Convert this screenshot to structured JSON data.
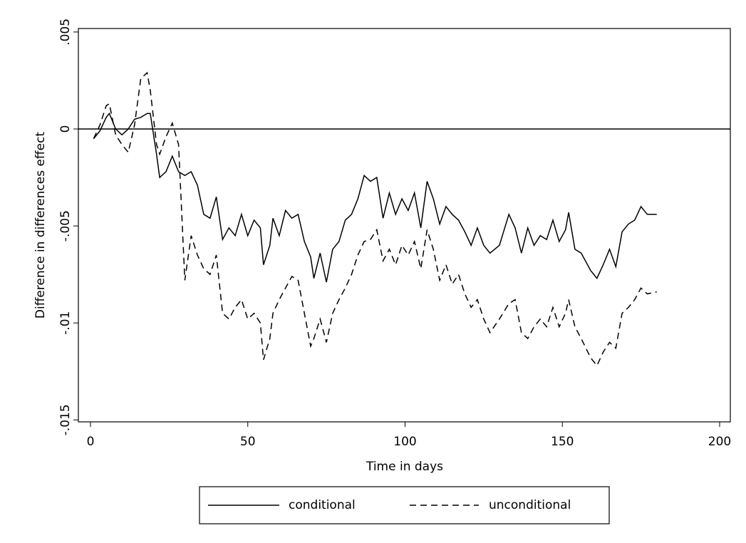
{
  "chart_data": {
    "type": "line",
    "xlabel": "Time in days",
    "ylabel": "Difference in differences effect",
    "x": [
      1,
      3,
      5,
      6,
      8,
      10,
      12,
      14,
      16,
      18,
      19,
      21,
      22,
      24,
      26,
      28,
      30,
      32,
      34,
      36,
      38,
      40,
      42,
      44,
      46,
      48,
      50,
      52,
      54,
      55,
      57,
      58,
      60,
      62,
      64,
      66,
      68,
      70,
      71,
      73,
      75,
      77,
      79,
      81,
      83,
      85,
      87,
      89,
      91,
      93,
      95,
      97,
      99,
      101,
      103,
      105,
      107,
      109,
      111,
      113,
      115,
      117,
      119,
      121,
      123,
      125,
      127,
      130,
      133,
      135,
      137,
      139,
      141,
      143,
      145,
      147,
      149,
      151,
      152,
      154,
      156,
      159,
      161,
      163,
      165,
      167,
      169,
      171,
      173,
      175,
      177,
      180
    ],
    "series": [
      {
        "name": "conditional",
        "color": "#000000",
        "style": "solid",
        "values": [
          -0.0005,
          -0.0001,
          0.0006,
          0.0008,
          0,
          -0.0003,
          0,
          0.0005,
          0.0006,
          0.0008,
          0.0008,
          -0.0013,
          -0.0025,
          -0.0022,
          -0.0014,
          -0.0022,
          -0.0024,
          -0.0022,
          -0.0029,
          -0.0044,
          -0.0046,
          -0.0035,
          -0.0057,
          -0.0051,
          -0.0055,
          -0.0044,
          -0.0055,
          -0.0047,
          -0.0051,
          -0.007,
          -0.006,
          -0.0046,
          -0.0055,
          -0.0042,
          -0.0046,
          -0.0044,
          -0.0058,
          -0.0066,
          -0.0077,
          -0.0064,
          -0.0079,
          -0.0062,
          -0.0058,
          -0.0047,
          -0.0044,
          -0.0036,
          -0.0024,
          -0.0027,
          -0.0025,
          -0.0046,
          -0.0033,
          -0.0044,
          -0.0036,
          -0.0042,
          -0.0033,
          -0.0051,
          -0.0027,
          -0.0036,
          -0.0049,
          -0.004,
          -0.0044,
          -0.0047,
          -0.0053,
          -0.006,
          -0.0051,
          -0.006,
          -0.0064,
          -0.006,
          -0.0044,
          -0.0051,
          -0.0064,
          -0.0051,
          -0.006,
          -0.0055,
          -0.0057,
          -0.0047,
          -0.0058,
          -0.0052,
          -0.0043,
          -0.0062,
          -0.0064,
          -0.0073,
          -0.0077,
          -0.007,
          -0.0062,
          -0.0071,
          -0.0053,
          -0.0049,
          -0.0047,
          -0.004,
          -0.0044,
          -0.0044
        ]
      },
      {
        "name": "unconditional",
        "color": "#000000",
        "style": "dashed",
        "values": [
          -0.0005,
          0.0002,
          0.0012,
          0.0013,
          -0.0003,
          -0.0008,
          -0.0012,
          0.0002,
          0.0026,
          0.0029,
          0.002,
          -0.0008,
          -0.0013,
          -0.0004,
          0.0003,
          -0.0008,
          -0.0078,
          -0.0055,
          -0.0065,
          -0.0072,
          -0.0075,
          -0.0065,
          -0.0095,
          -0.0098,
          -0.0092,
          -0.0088,
          -0.0098,
          -0.0095,
          -0.01,
          -0.0119,
          -0.0108,
          -0.0095,
          -0.0088,
          -0.0082,
          -0.0076,
          -0.0078,
          -0.0095,
          -0.0112,
          -0.0108,
          -0.0098,
          -0.011,
          -0.0095,
          -0.0088,
          -0.0082,
          -0.0075,
          -0.0065,
          -0.0058,
          -0.0057,
          -0.0052,
          -0.0068,
          -0.0062,
          -0.007,
          -0.006,
          -0.0065,
          -0.0058,
          -0.0072,
          -0.0052,
          -0.0062,
          -0.0078,
          -0.007,
          -0.008,
          -0.0075,
          -0.0085,
          -0.0092,
          -0.0088,
          -0.0098,
          -0.0105,
          -0.0098,
          -0.009,
          -0.0088,
          -0.0105,
          -0.0108,
          -0.0102,
          -0.0098,
          -0.0102,
          -0.0092,
          -0.0102,
          -0.0095,
          -0.0088,
          -0.0102,
          -0.0108,
          -0.0118,
          -0.0122,
          -0.0115,
          -0.011,
          -0.0113,
          -0.0095,
          -0.0092,
          -0.0088,
          -0.0082,
          -0.0085,
          -0.0084
        ]
      }
    ],
    "xlim": [
      -3.85,
      203.4
    ],
    "ylim": [
      -0.0151,
      0.00518
    ],
    "xticks": [
      0,
      50,
      100,
      150,
      200
    ],
    "yticks": [
      {
        "value": -0.015,
        "label": "-.015"
      },
      {
        "value": -0.01,
        "label": "-.01"
      },
      {
        "value": -0.005,
        "label": "-.005"
      },
      0,
      {
        "value": 0.005,
        "label": ".005"
      }
    ],
    "refline": 0,
    "legend": "bottom"
  }
}
